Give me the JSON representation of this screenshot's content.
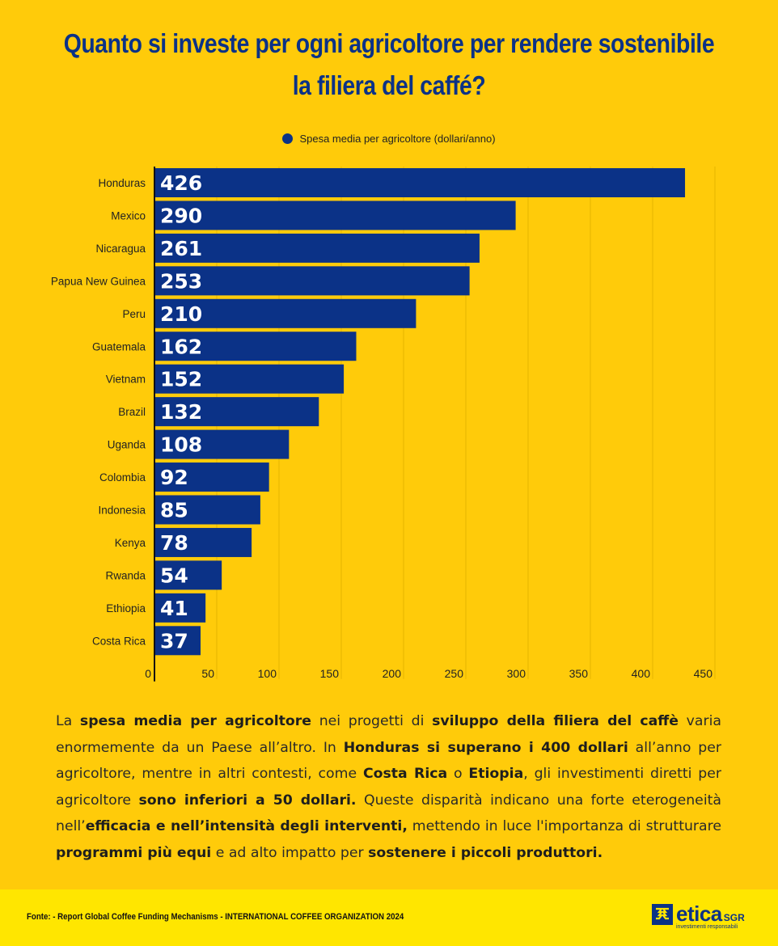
{
  "title_lines": [
    "Quanto si investe per ogni agricoltore per rendere sostenibile",
    "la filiera del caffé?"
  ],
  "chart_data": {
    "type": "bar",
    "orientation": "horizontal",
    "title": "Quanto si investe per ogni agricoltore per rendere sostenibile la filiera del caffé?",
    "legend": {
      "position": "top-center"
    },
    "series": [
      {
        "name": "Spesa media per agricoltore (dollari/anno)",
        "color": "#0B3287",
        "values": [
          426,
          290,
          261,
          253,
          210,
          162,
          152,
          132,
          108,
          92,
          85,
          78,
          54,
          41,
          37
        ]
      }
    ],
    "categories": [
      "Honduras",
      "Mexico",
      "Nicaragua",
      "Papua New Guinea",
      "Peru",
      "Guatemala",
      "Vietnam",
      "Brazil",
      "Uganda",
      "Colombia",
      "Indonesia",
      "Kenya",
      "Rwanda",
      "Ethiopia",
      "Costa Rica"
    ],
    "xticks": [
      "0",
      "50",
      "100",
      "150",
      "200",
      "250",
      "300",
      "350",
      "400",
      "450"
    ],
    "xlim": [
      0,
      450
    ],
    "grid": true,
    "data_labels": "inside-start, white bold"
  },
  "paragraph": [
    {
      "t": "La ",
      "b": false
    },
    {
      "t": "spesa media per agricoltore",
      "b": true
    },
    {
      "t": " nei progetti di ",
      "b": false
    },
    {
      "t": "sviluppo della filiera del caffè",
      "b": true
    },
    {
      "t": " varia enormemente da un Paese all’altro. In ",
      "b": false
    },
    {
      "t": "Honduras si superano i 400 dollari",
      "b": true
    },
    {
      "t": " all’anno per agricoltore, mentre in altri contesti, come ",
      "b": false
    },
    {
      "t": "Costa Rica",
      "b": true
    },
    {
      "t": " o ",
      "b": false
    },
    {
      "t": "Etiopia",
      "b": true
    },
    {
      "t": ", gli investimenti diretti per agricoltore ",
      "b": false
    },
    {
      "t": "sono inferiori a 50 dollari.",
      "b": true
    },
    {
      "t": " Queste disparità indicano una forte eterogeneità nell’",
      "b": false
    },
    {
      "t": "efficacia e nell’intensità degli interventi,",
      "b": true
    },
    {
      "t": " mettendo in luce l'importanza di strutturare ",
      "b": false
    },
    {
      "t": "programmi più equi",
      "b": true
    },
    {
      "t": " e ad alto impatto per ",
      "b": false
    },
    {
      "t": "sostenere i piccoli produttori.",
      "b": true
    }
  ],
  "footer": {
    "source": "Fonte: - Report Global Coffee Funding Mechanisms - INTERNATIONAL COFFEE ORGANIZATION 2024",
    "logo_word": "etica",
    "logo_sgr": "SGR",
    "logo_tagline": "investimenti responsabili"
  },
  "colors": {
    "background": "#FFCB0A",
    "footer_band": "#FFE600",
    "navy": "#0B3287"
  }
}
